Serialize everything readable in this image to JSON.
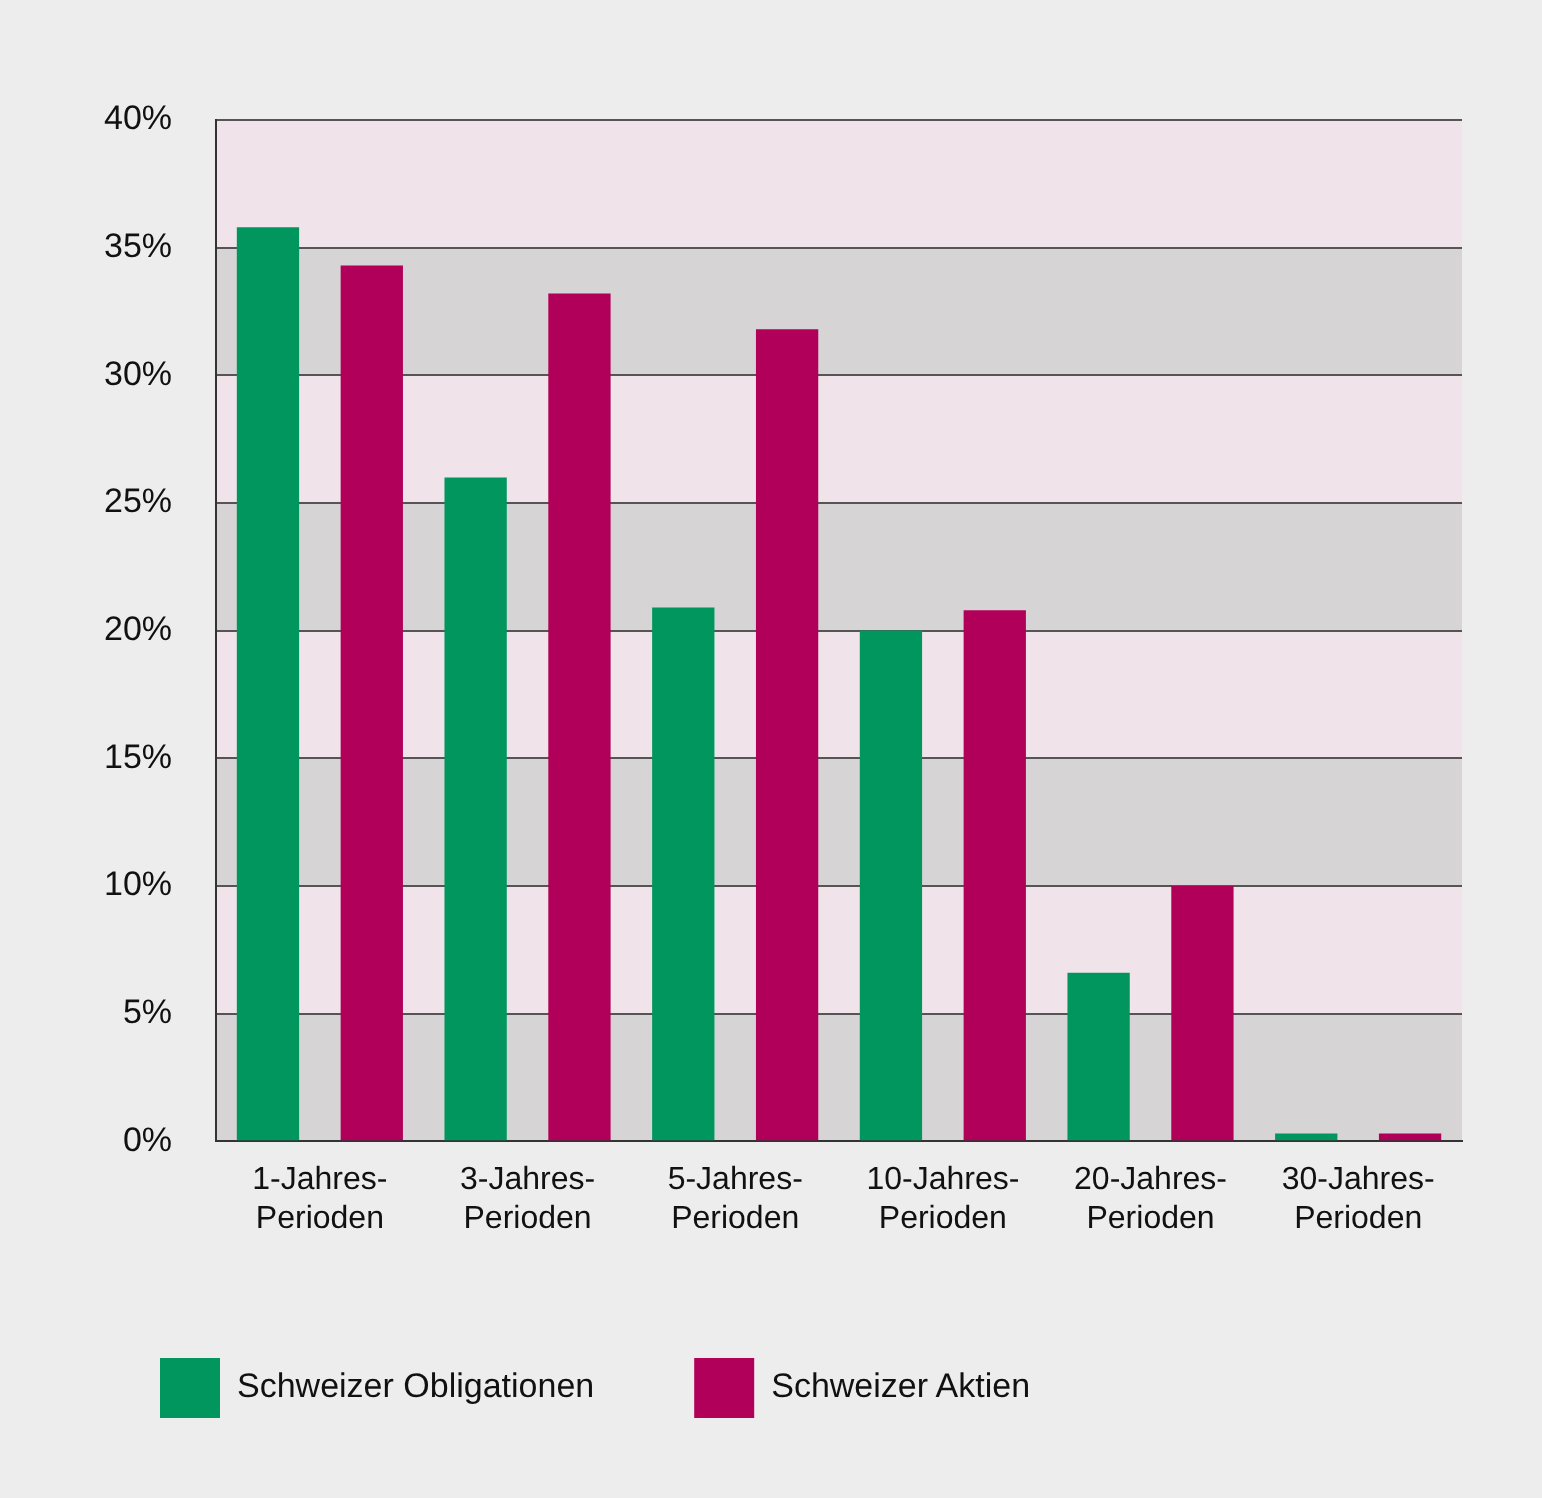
{
  "chart_data": {
    "type": "bar",
    "categories": [
      "1-Jahres-Perioden",
      "3-Jahres-Perioden",
      "5-Jahres-Perioden",
      "10-Jahres-Perioden",
      "20-Jahres-Perioden",
      "30-Jahres-Perioden"
    ],
    "series": [
      {
        "name": "Schweizer Obligationen",
        "color": "#00965e",
        "values": [
          35.8,
          26.0,
          20.9,
          20.0,
          6.6,
          0.3
        ]
      },
      {
        "name": "Schweizer Aktien",
        "color": "#b0005a",
        "values": [
          34.3,
          33.2,
          31.8,
          20.8,
          10.0,
          0.3
        ]
      }
    ],
    "ylim": [
      0,
      40
    ],
    "yticks": [
      {
        "value": 0,
        "label": "0%"
      },
      {
        "value": 5,
        "label": "5%"
      },
      {
        "value": 10,
        "label": "10%"
      },
      {
        "value": 15,
        "label": "15%"
      },
      {
        "value": 20,
        "label": "20%"
      },
      {
        "value": 25,
        "label": "25%"
      },
      {
        "value": 30,
        "label": "30%"
      },
      {
        "value": 35,
        "label": "35%"
      },
      {
        "value": 40,
        "label": "40%"
      }
    ],
    "bands": [
      {
        "axis": "y",
        "from": 0,
        "to": 5,
        "color": "#d6d4d5"
      },
      {
        "axis": "y",
        "from": 5,
        "to": 10,
        "color": "#f0e4ea"
      },
      {
        "axis": "y",
        "from": 10,
        "to": 15,
        "color": "#d6d4d5"
      },
      {
        "axis": "y",
        "from": 15,
        "to": 20,
        "color": "#f0e4ea"
      },
      {
        "axis": "y",
        "from": 20,
        "to": 25,
        "color": "#d6d4d5"
      },
      {
        "axis": "y",
        "from": 25,
        "to": 30,
        "color": "#f0e4ea"
      },
      {
        "axis": "y",
        "from": 30,
        "to": 35,
        "color": "#d6d4d5"
      },
      {
        "axis": "y",
        "from": 35,
        "to": 40,
        "color": "#f0e4ea"
      }
    ],
    "grid": "y",
    "legend": "bottom"
  }
}
